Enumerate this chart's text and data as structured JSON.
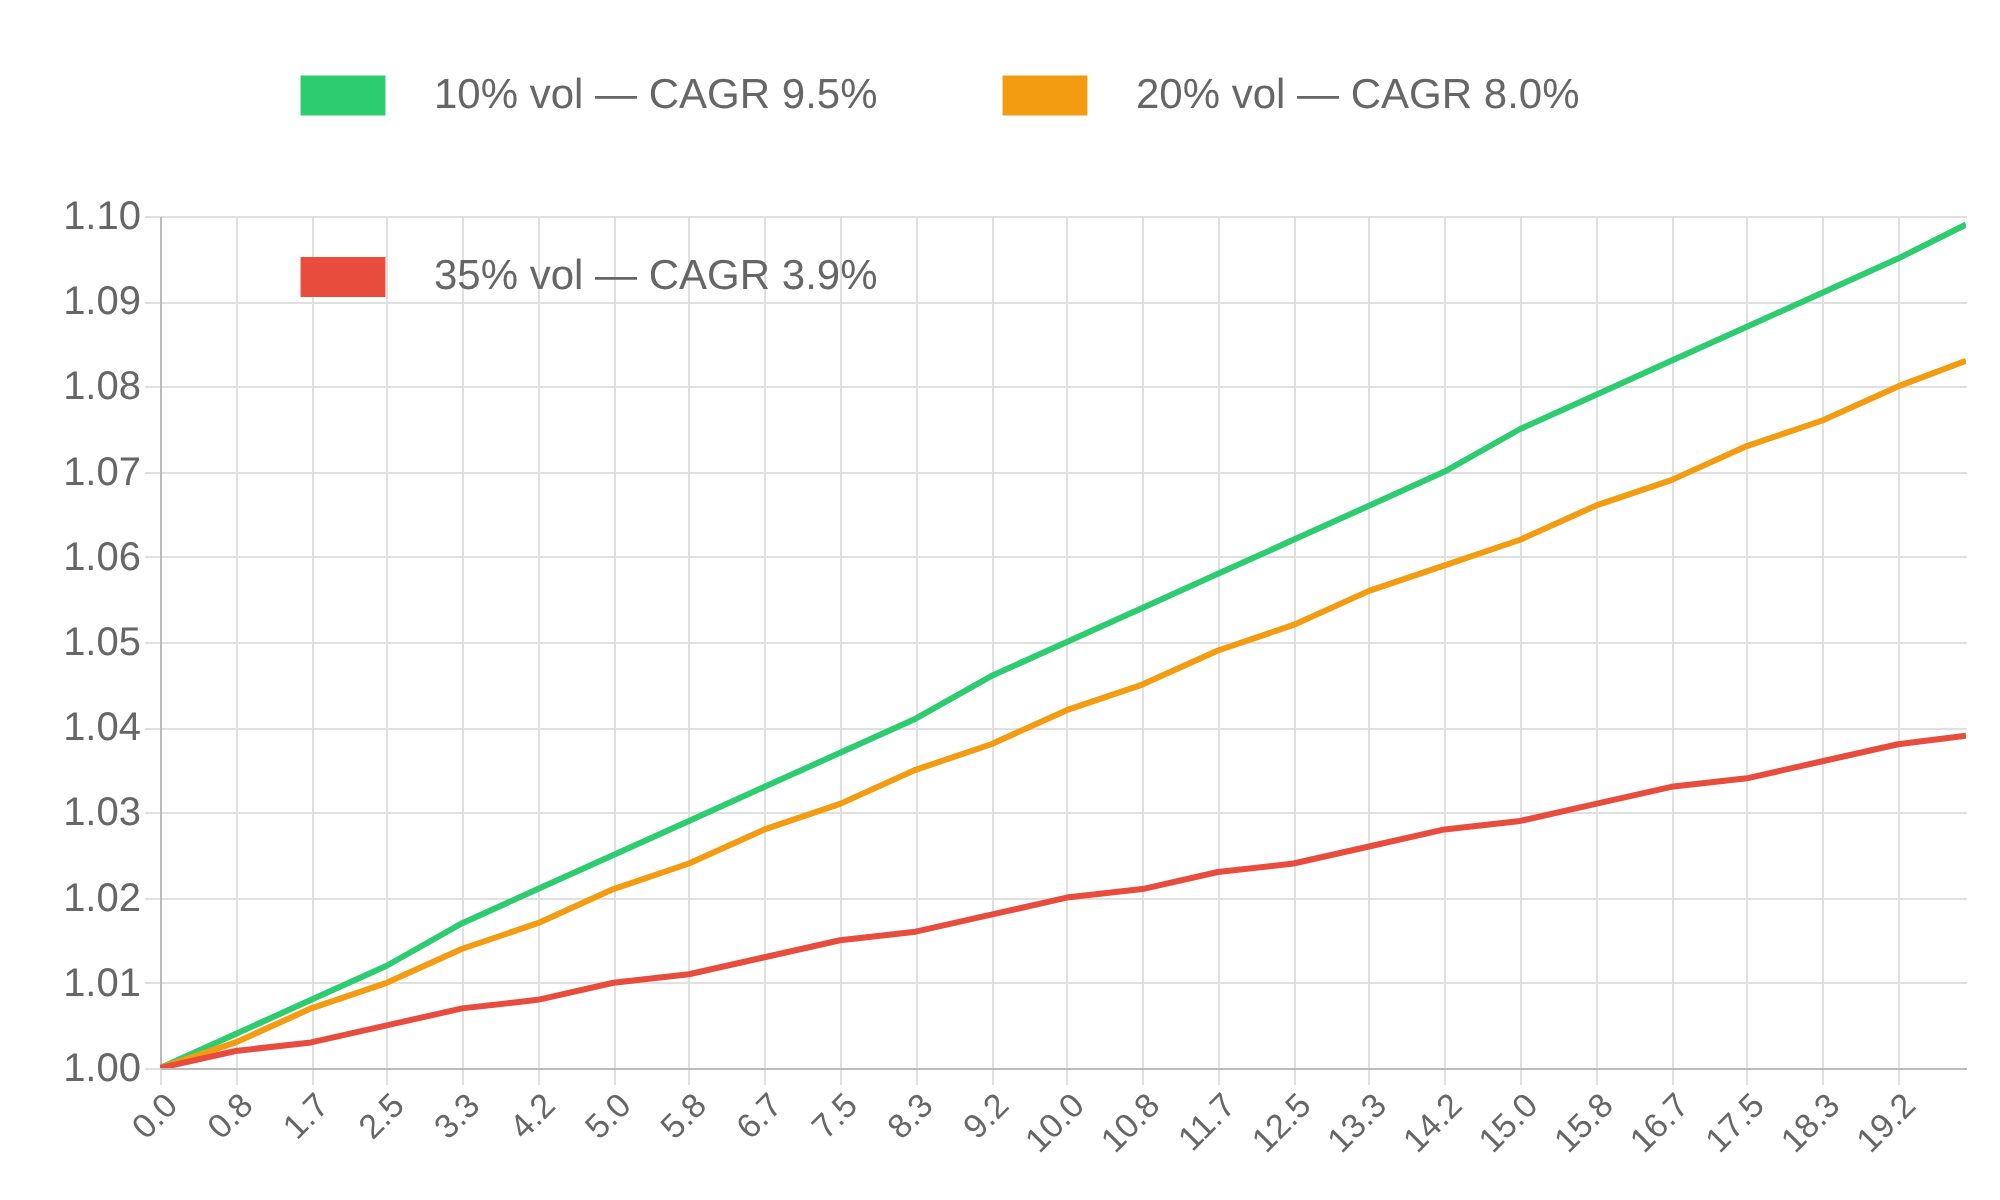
{
  "chart_data": {
    "type": "line",
    "legend": "top",
    "grid": true,
    "marker": "none",
    "line_style": "solid",
    "x": [
      0,
      0.833,
      1.667,
      2.5,
      3.333,
      4.167,
      5,
      5.833,
      6.667,
      7.5,
      8.333,
      9.167,
      10,
      10.833,
      11.667,
      12.5,
      13.333,
      14.167,
      15,
      15.833,
      16.667,
      17.5,
      18.333,
      19.167,
      19.917
    ],
    "xlim": [
      0,
      19.917
    ],
    "xticks": [
      {
        "value": 0,
        "label": "0.0"
      },
      {
        "value": 0.833,
        "label": "0.8"
      },
      {
        "value": 1.667,
        "label": "1.7"
      },
      {
        "value": 2.5,
        "label": "2.5"
      },
      {
        "value": 3.333,
        "label": "3.3"
      },
      {
        "value": 4.167,
        "label": "4.2"
      },
      {
        "value": 5,
        "label": "5.0"
      },
      {
        "value": 5.833,
        "label": "5.8"
      },
      {
        "value": 6.667,
        "label": "6.7"
      },
      {
        "value": 7.5,
        "label": "7.5"
      },
      {
        "value": 8.333,
        "label": "8.3"
      },
      {
        "value": 9.167,
        "label": "9.2"
      },
      {
        "value": 10,
        "label": "10.0"
      },
      {
        "value": 10.833,
        "label": "10.8"
      },
      {
        "value": 11.667,
        "label": "11.7"
      },
      {
        "value": 12.5,
        "label": "12.5"
      },
      {
        "value": 13.333,
        "label": "13.3"
      },
      {
        "value": 14.167,
        "label": "14.2"
      },
      {
        "value": 15,
        "label": "15.0"
      },
      {
        "value": 15.833,
        "label": "15.8"
      },
      {
        "value": 16.667,
        "label": "16.7"
      },
      {
        "value": 17.5,
        "label": "17.5"
      },
      {
        "value": 18.333,
        "label": "18.3"
      },
      {
        "value": 19.167,
        "label": "19.2"
      }
    ],
    "ylim": [
      1.0,
      1.1
    ],
    "yticks": [
      {
        "value": 1.0,
        "label": "1.00"
      },
      {
        "value": 1.01,
        "label": "1.01"
      },
      {
        "value": 1.02,
        "label": "1.02"
      },
      {
        "value": 1.03,
        "label": "1.03"
      },
      {
        "value": 1.04,
        "label": "1.04"
      },
      {
        "value": 1.05,
        "label": "1.05"
      },
      {
        "value": 1.06,
        "label": "1.06"
      },
      {
        "value": 1.07,
        "label": "1.07"
      },
      {
        "value": 1.08,
        "label": "1.08"
      },
      {
        "value": 1.09,
        "label": "1.09"
      },
      {
        "value": 1.1,
        "label": "1.10"
      }
    ],
    "series": [
      {
        "name": "10% vol — CAGR 9.5%",
        "color": "#2ecc71",
        "values": [
          1.0,
          1.004,
          1.008,
          1.012,
          1.017,
          1.021,
          1.025,
          1.029,
          1.033,
          1.037,
          1.041,
          1.046,
          1.05,
          1.054,
          1.058,
          1.062,
          1.066,
          1.07,
          1.075,
          1.079,
          1.083,
          1.087,
          1.091,
          1.095,
          1.099
        ]
      },
      {
        "name": "20% vol — CAGR 8.0%",
        "color": "#f39c12",
        "values": [
          1.0,
          1.003,
          1.007,
          1.01,
          1.014,
          1.017,
          1.021,
          1.024,
          1.028,
          1.031,
          1.035,
          1.038,
          1.042,
          1.045,
          1.049,
          1.052,
          1.056,
          1.059,
          1.062,
          1.066,
          1.069,
          1.073,
          1.076,
          1.08,
          1.083
        ]
      },
      {
        "name": "35% vol — CAGR 3.9%",
        "color": "#e74c3c",
        "values": [
          1.0,
          1.002,
          1.003,
          1.005,
          1.007,
          1.008,
          1.01,
          1.011,
          1.013,
          1.015,
          1.016,
          1.018,
          1.02,
          1.021,
          1.023,
          1.024,
          1.026,
          1.028,
          1.029,
          1.031,
          1.033,
          1.034,
          1.036,
          1.038,
          1.039
        ]
      }
    ]
  }
}
